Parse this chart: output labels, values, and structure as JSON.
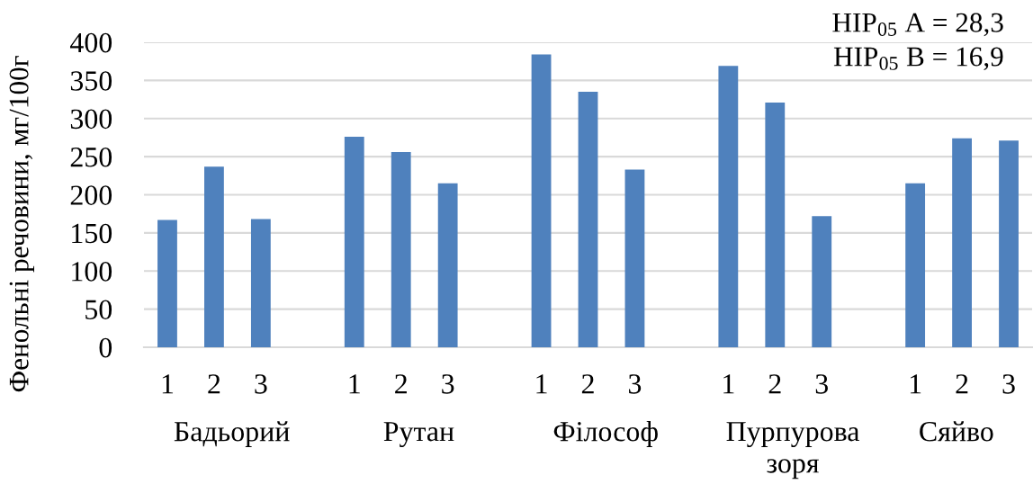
{
  "chart_data": {
    "type": "bar",
    "ylabel": "Фенольні речовини, мг/100г",
    "categories": [
      "1",
      "2",
      "3",
      null,
      "1",
      "2",
      "3",
      null,
      "1",
      "2",
      "3",
      null,
      "1",
      "2",
      "3",
      null,
      "1",
      "2",
      "3"
    ],
    "values": [
      167,
      237,
      168,
      null,
      276,
      256,
      215,
      null,
      384,
      335,
      233,
      null,
      369,
      321,
      172,
      null,
      215,
      274,
      271
    ],
    "color": "#4f81bd",
    "ylim": [
      0,
      400
    ],
    "yticks": [
      0,
      50,
      100,
      150,
      200,
      250,
      300,
      350,
      400
    ],
    "grid": "y",
    "annotations": [
      "Бадьорий",
      "Рутан",
      "Філософ",
      "Пурпурова\nзоря",
      "Сяйво",
      "НІР$_{05}$ А = 28,3",
      "НІР$_{05}$ В = 16,9"
    ]
  }
}
